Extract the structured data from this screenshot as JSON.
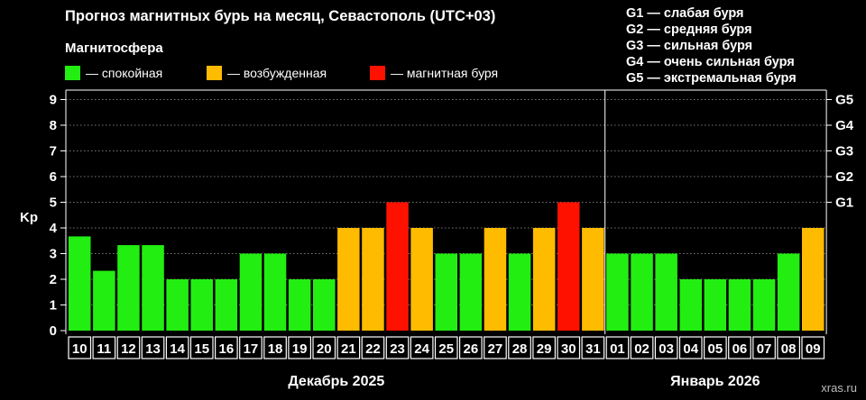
{
  "chart_data": {
    "type": "bar",
    "title": "Прогноз магнитных бурь на месяц, Севастополь (UTC+03)",
    "subtitle": "Магнитосфера",
    "ylabel": "Kp",
    "ylim": [
      0,
      9
    ],
    "yticks": [
      "0",
      "1",
      "2",
      "3",
      "4",
      "5",
      "6",
      "7",
      "8",
      "9"
    ],
    "right_ticks": [
      {
        "value": 5,
        "label": "G1"
      },
      {
        "value": 6,
        "label": "G2"
      },
      {
        "value": 7,
        "label": "G3"
      },
      {
        "value": 8,
        "label": "G4"
      },
      {
        "value": 9,
        "label": "G5"
      }
    ],
    "categories": [
      "10",
      "11",
      "12",
      "13",
      "14",
      "15",
      "16",
      "17",
      "18",
      "19",
      "20",
      "21",
      "22",
      "23",
      "24",
      "25",
      "26",
      "27",
      "28",
      "29",
      "30",
      "31",
      "01",
      "02",
      "03",
      "04",
      "05",
      "06",
      "07",
      "08",
      "09"
    ],
    "values": [
      3.67,
      2.33,
      3.33,
      3.33,
      2,
      2,
      2,
      3,
      3,
      2,
      2,
      4,
      4,
      5,
      4,
      3,
      3,
      4,
      3,
      4,
      5,
      4,
      3,
      3,
      3,
      2,
      2,
      2,
      2,
      3,
      4
    ],
    "months": [
      {
        "label": "Декабрь 2025",
        "count": 22
      },
      {
        "label": "Январь 2026",
        "count": 9
      }
    ],
    "grid": true,
    "legend": [
      {
        "label": "— спокойная",
        "color": "#22ee11"
      },
      {
        "label": "— возбужденная",
        "color": "#ffbb00"
      },
      {
        "label": "— магнитная буря",
        "color": "#ff1100"
      }
    ],
    "storm_levels": [
      "G1 — слабая буря",
      "G2 — средняя буря",
      "G3 — сильная буря",
      "G4 — очень сильная буря",
      "G5 — экстремальная буря"
    ],
    "watermark": "xras.ru"
  }
}
